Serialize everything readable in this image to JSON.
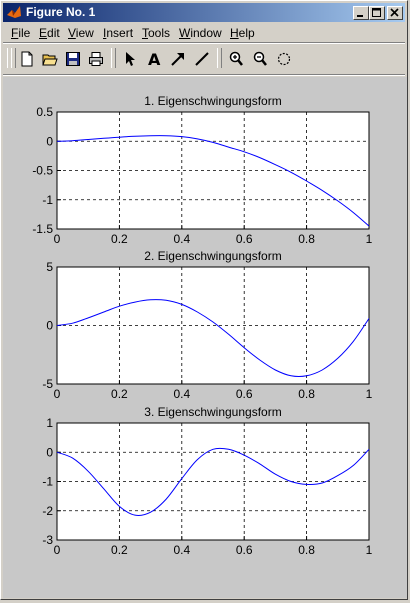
{
  "window": {
    "title": "Figure No. 1",
    "controls": [
      "minimize",
      "maximize",
      "close"
    ]
  },
  "menu": {
    "items": [
      {
        "mnemonic": "F",
        "rest": "ile"
      },
      {
        "mnemonic": "E",
        "rest": "dit"
      },
      {
        "mnemonic": "V",
        "rest": "iew"
      },
      {
        "mnemonic": "I",
        "rest": "nsert"
      },
      {
        "mnemonic": "T",
        "rest": "ools"
      },
      {
        "mnemonic": "W",
        "rest": "indow"
      },
      {
        "mnemonic": "H",
        "rest": "elp"
      }
    ]
  },
  "toolbar": {
    "tools": [
      "new-file-icon",
      "open-folder-icon",
      "save-icon",
      "print-icon",
      "select-arrow-icon",
      "insert-text-icon",
      "insert-arrow-icon",
      "insert-line-icon",
      "zoom-in-icon",
      "zoom-out-icon",
      "rotate-icon"
    ],
    "text_tool_glyph": "A"
  },
  "colors": {
    "title_start": "#0a246a",
    "title_end": "#a6caf0",
    "figure_bg": "#c8c8c8",
    "line": "#0000ff",
    "grid": "#000000"
  },
  "chart_data": [
    {
      "type": "line",
      "title": "1. Eigenschwingungsform",
      "xlim": [
        0,
        1
      ],
      "ylim": [
        -1.5,
        0.5
      ],
      "xticks": [
        "0",
        "0.2",
        "0.4",
        "0.6",
        "0.8",
        "1"
      ],
      "yticks": [
        "0.5",
        "0",
        "-0.5",
        "-1",
        "-1.5"
      ],
      "ytick_values": [
        0.5,
        0,
        -0.5,
        -1,
        -1.5
      ],
      "grid": true,
      "x": [
        0,
        0.05,
        0.1,
        0.15,
        0.2,
        0.25,
        0.3,
        0.35,
        0.4,
        0.45,
        0.5,
        0.55,
        0.6,
        0.65,
        0.7,
        0.75,
        0.8,
        0.85,
        0.9,
        0.95,
        1.0
      ],
      "y": [
        0,
        0.01,
        0.03,
        0.05,
        0.07,
        0.085,
        0.095,
        0.095,
        0.08,
        0.04,
        -0.02,
        -0.1,
        -0.18,
        -0.28,
        -0.4,
        -0.53,
        -0.68,
        -0.84,
        -1.02,
        -1.22,
        -1.45
      ]
    },
    {
      "type": "line",
      "title": "2. Eigenschwingungsform",
      "xlim": [
        0,
        1
      ],
      "ylim": [
        -5,
        5
      ],
      "xticks": [
        "0",
        "0.2",
        "0.4",
        "0.6",
        "0.8",
        "1"
      ],
      "yticks": [
        "5",
        "0",
        "-5"
      ],
      "ytick_values": [
        5,
        0,
        -5
      ],
      "grid": true,
      "x": [
        0,
        0.05,
        0.1,
        0.15,
        0.2,
        0.25,
        0.3,
        0.35,
        0.4,
        0.45,
        0.5,
        0.55,
        0.6,
        0.65,
        0.7,
        0.75,
        0.8,
        0.85,
        0.9,
        0.95,
        1.0
      ],
      "y": [
        0,
        0.2,
        0.65,
        1.15,
        1.65,
        2.0,
        2.2,
        2.15,
        1.8,
        1.15,
        0.3,
        -0.75,
        -1.9,
        -2.95,
        -3.8,
        -4.3,
        -4.3,
        -3.8,
        -2.8,
        -1.35,
        0.6
      ]
    },
    {
      "type": "line",
      "title": "3. Eigenschwingungsform",
      "xlim": [
        0,
        1
      ],
      "ylim": [
        -3,
        1
      ],
      "xticks": [
        "0",
        "0.2",
        "0.4",
        "0.6",
        "0.8",
        "1"
      ],
      "yticks": [
        "1",
        "0",
        "-1",
        "-2",
        "-3"
      ],
      "ytick_values": [
        1,
        0,
        -1,
        -2,
        -3
      ],
      "grid": true,
      "x": [
        0,
        0.05,
        0.1,
        0.15,
        0.2,
        0.25,
        0.3,
        0.35,
        0.4,
        0.45,
        0.5,
        0.55,
        0.6,
        0.65,
        0.7,
        0.75,
        0.8,
        0.85,
        0.9,
        0.95,
        1.0
      ],
      "y": [
        0,
        -0.2,
        -0.65,
        -1.25,
        -1.85,
        -2.15,
        -2.05,
        -1.6,
        -0.9,
        -0.25,
        0.1,
        0.1,
        -0.1,
        -0.4,
        -0.75,
        -1.0,
        -1.1,
        -1.05,
        -0.8,
        -0.45,
        0.1
      ]
    }
  ]
}
